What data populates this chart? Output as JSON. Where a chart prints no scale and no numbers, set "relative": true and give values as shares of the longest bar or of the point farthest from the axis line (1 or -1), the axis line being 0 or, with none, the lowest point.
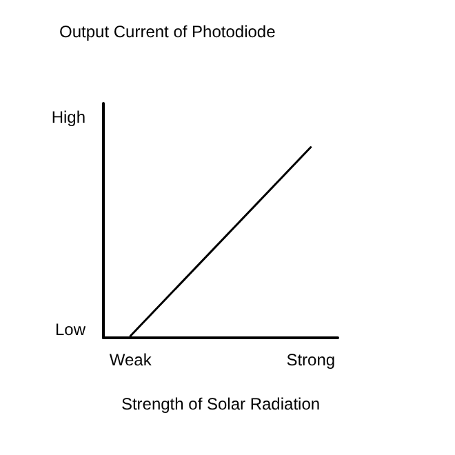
{
  "chart_data": {
    "type": "line",
    "title": "Output Current of Photodiode",
    "xlabel": "Strength of Solar Radiation",
    "categories": [
      null,
      "Weak",
      null,
      null,
      null,
      null,
      null,
      null,
      null,
      null,
      null,
      "Strong",
      null
    ],
    "relative": true,
    "series": [
      {
        "color": "#000000",
        "x": [
          "Weak",
          "Strong"
        ],
        "values": [
          0.01,
          1
        ]
      }
    ],
    "annotations": [
      "High",
      "Low"
    ],
    "grid": false,
    "marker": "none",
    "line_style": "solid"
  }
}
